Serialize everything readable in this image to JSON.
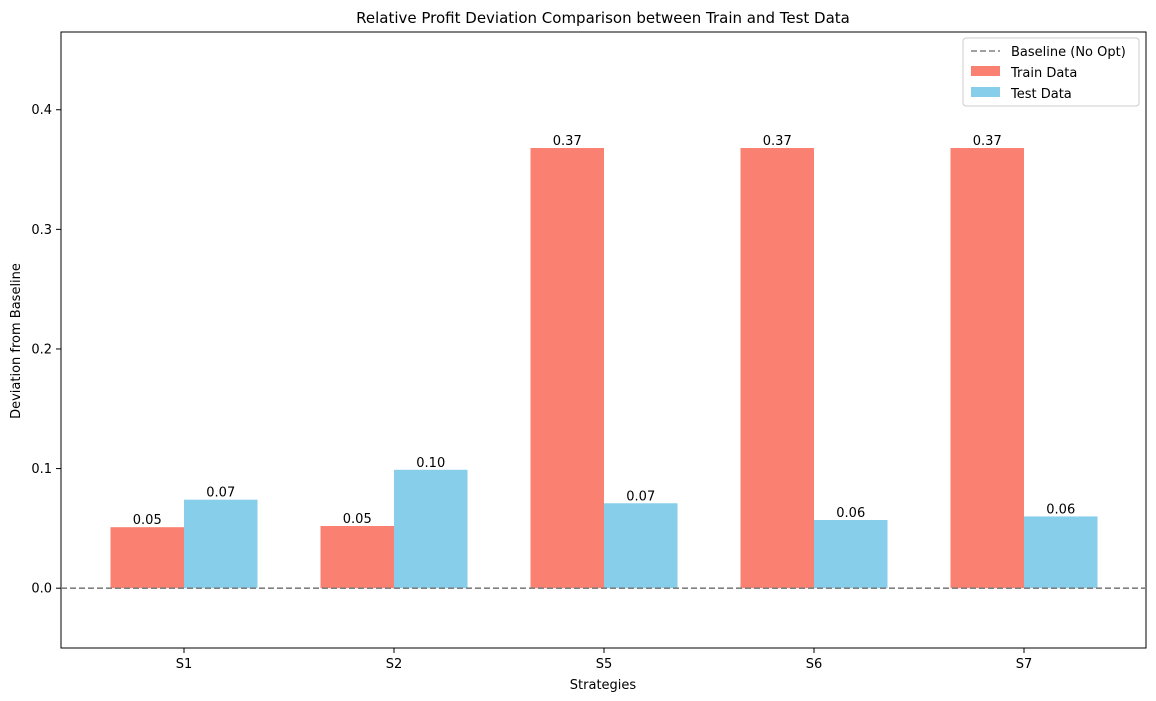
{
  "chart_data": {
    "type": "bar",
    "title": "Relative Profit Deviation Comparison between Train and Test Data",
    "xlabel": "Strategies",
    "ylabel": "Deviation from Baseline",
    "categories": [
      "S1",
      "S2",
      "S5",
      "S6",
      "S7"
    ],
    "series": [
      {
        "name": "Train Data",
        "color": "#fa8072",
        "values": [
          0.051,
          0.052,
          0.368,
          0.368,
          0.368
        ],
        "labels": [
          "0.05",
          "0.05",
          "0.37",
          "0.37",
          "0.37"
        ]
      },
      {
        "name": "Test Data",
        "color": "#87ceeb",
        "values": [
          0.074,
          0.099,
          0.071,
          0.057,
          0.06
        ],
        "labels": [
          "0.07",
          "0.10",
          "0.07",
          "0.06",
          "0.06"
        ]
      }
    ],
    "baseline": {
      "name": "Baseline (No Opt)",
      "value": 0.0,
      "color": "#808080",
      "style": "dashed"
    },
    "ylim": [
      -0.05,
      0.465
    ],
    "yticks": [
      "0.0",
      "0.1",
      "0.2",
      "0.3",
      "0.4"
    ],
    "grid": false,
    "legend_position": "top-right"
  }
}
